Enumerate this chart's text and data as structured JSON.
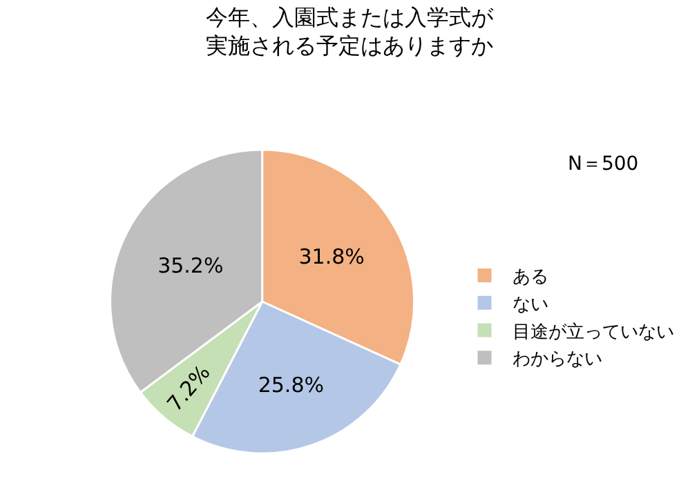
{
  "chart_data": {
    "type": "pie",
    "title": "今年、入園式または入学式が",
    "subtitle": "実施される予定はありますか",
    "categories": [
      "ある",
      "ない",
      "目途が立っていない",
      "わからない"
    ],
    "values": [
      31.8,
      25.8,
      7.2,
      35.2
    ],
    "value_labels": [
      "31.8%",
      "25.8%",
      "7.2%",
      "35.2%"
    ],
    "colors": [
      "#f4b183",
      "#b4c7e7",
      "#c5e0b4",
      "#bfbfbf"
    ],
    "annotations": [
      "N＝500"
    ],
    "legend": "right"
  }
}
